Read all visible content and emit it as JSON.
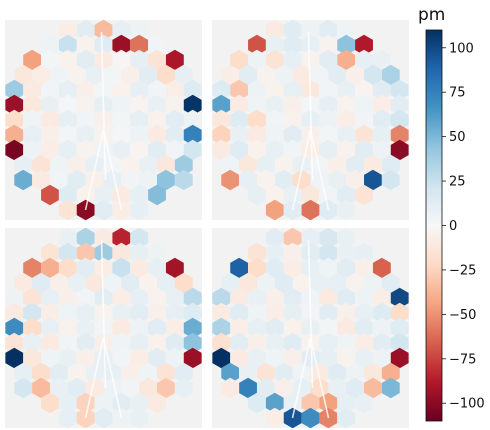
{
  "chart_data": {
    "type": "heatmap",
    "colormap": "RdBu",
    "vmin": -110,
    "vmax": 110,
    "colorbar": {
      "label": "pm",
      "ticks": [
        100,
        75,
        50,
        25,
        0,
        -25,
        -50,
        -75,
        -100
      ],
      "tick_labels": [
        "100",
        "75",
        "50",
        "25",
        "0",
        "−25",
        "−50",
        "−75",
        "−100"
      ]
    },
    "panels": [
      {
        "name": "top-left",
        "rows": [
          [
            -8,
            12,
            -35,
            10,
            6
          ],
          [
            6,
            25,
            -5,
            14,
            -95,
            -60,
            4
          ],
          [
            -45,
            3,
            -5,
            12,
            -10,
            -2,
            10,
            -15,
            -90
          ],
          [
            -12,
            -8,
            5,
            -4,
            8,
            3,
            -6,
            12,
            -20,
            10
          ],
          [
            40,
            -10,
            4,
            10,
            -6,
            3,
            -5,
            10,
            4,
            -8,
            15
          ],
          [
            -95,
            -12,
            8,
            2,
            -4,
            10,
            5,
            -3,
            8,
            -4,
            108
          ],
          [
            -20,
            5,
            -10,
            10,
            4,
            -6,
            3,
            10,
            -5,
            12,
            6
          ],
          [
            -40,
            10,
            -6,
            3,
            8,
            -4,
            2,
            6,
            -10,
            12,
            75
          ],
          [
            -105,
            6,
            -8,
            10,
            -4,
            5,
            8,
            -3,
            12,
            4,
            20
          ],
          [
            10,
            -15,
            5,
            -6,
            10,
            3,
            -5,
            8,
            -12,
            40
          ],
          [
            55,
            -10,
            4,
            12,
            -6,
            10,
            4,
            6,
            45,
            30
          ],
          [
            -70,
            15,
            -5,
            8,
            -10,
            10,
            48
          ],
          [
            -15,
            -100,
            12,
            -8,
            10
          ]
        ]
      },
      {
        "name": "top-right",
        "rows": [
          [
            -10,
            14,
            6,
            12,
            5
          ],
          [
            -70,
            8,
            14,
            10,
            -4,
            45,
            -88
          ],
          [
            -20,
            6,
            -15,
            10,
            -5,
            12,
            -40,
            10,
            8
          ],
          [
            -8,
            12,
            -4,
            6,
            -10,
            4,
            12,
            -6,
            20,
            35
          ],
          [
            15,
            -30,
            6,
            -5,
            10,
            -12,
            4,
            8,
            -3,
            12,
            20
          ],
          [
            60,
            -10,
            5,
            8,
            -6,
            3,
            10,
            -4,
            5,
            -8,
            12
          ],
          [
            -12,
            15,
            -20,
            4,
            -5,
            10,
            6,
            -8,
            4,
            12,
            20
          ],
          [
            -25,
            8,
            -10,
            5,
            12,
            -6,
            3,
            8,
            -15,
            10,
            -55
          ],
          [
            -10,
            14,
            -5,
            8,
            4,
            -8,
            10,
            -4,
            12,
            6,
            -100
          ],
          [
            5,
            -12,
            10,
            -4,
            8,
            3,
            -6,
            12,
            -10,
            14
          ],
          [
            -50,
            10,
            -4,
            12,
            -20,
            5,
            8,
            -6,
            95,
            20
          ],
          [
            10,
            -5,
            8,
            -12,
            4,
            12,
            -15
          ],
          [
            -45,
            12,
            -60,
            14,
            8
          ]
        ]
      },
      {
        "name": "bottom-left",
        "rows": [
          [
            8,
            35,
            -10,
            -85,
            20
          ],
          [
            -15,
            20,
            -30,
            40,
            -12,
            10,
            6
          ],
          [
            -55,
            -40,
            -20,
            12,
            -8,
            25,
            -10,
            10,
            -92
          ],
          [
            -10,
            14,
            -6,
            8,
            -12,
            5,
            12,
            -5,
            10,
            -20
          ],
          [
            6,
            -15,
            10,
            -6,
            4,
            12,
            -8,
            10,
            -4,
            8,
            30
          ],
          [
            -10,
            20,
            -8,
            5,
            10,
            -4,
            8,
            12,
            -6,
            10,
            15
          ],
          [
            70,
            -20,
            10,
            -5,
            8,
            3,
            -10,
            6,
            12,
            -8,
            55
          ],
          [
            -15,
            8,
            -10,
            4,
            12,
            -6,
            5,
            10,
            -5,
            14,
            45
          ],
          [
            110,
            -12,
            5,
            8,
            -6,
            10,
            4,
            -8,
            12,
            6,
            -95
          ],
          [
            10,
            -20,
            12,
            -4,
            8,
            10,
            -6,
            5,
            -15,
            12
          ],
          [
            20,
            -35,
            8,
            12,
            -10,
            6,
            4,
            -12,
            -30,
            10
          ],
          [
            -20,
            10,
            -25,
            6,
            12,
            8,
            -10
          ],
          [
            10,
            -25,
            12,
            6,
            8
          ]
        ]
      },
      {
        "name": "bottom-right",
        "rows": [
          [
            12,
            -30,
            10,
            18,
            8
          ],
          [
            -15,
            10,
            -6,
            12,
            20,
            8,
            10
          ],
          [
            90,
            -20,
            14,
            -8,
            10,
            5,
            12,
            -6,
            -65
          ],
          [
            10,
            -12,
            6,
            14,
            -5,
            8,
            10,
            -4,
            6,
            12
          ],
          [
            30,
            -10,
            8,
            -6,
            12,
            5,
            -10,
            14,
            6,
            -8,
            100
          ],
          [
            -10,
            14,
            5,
            -8,
            10,
            4,
            12,
            -6,
            10,
            15,
            -20
          ],
          [
            35,
            -8,
            10,
            12,
            -5,
            8,
            3,
            -10,
            12,
            6,
            14
          ],
          [
            -18,
            12,
            -6,
            8,
            14,
            -4,
            10,
            5,
            -8,
            12,
            20
          ],
          [
            115,
            -10,
            8,
            5,
            -6,
            12,
            10,
            -4,
            8,
            6,
            -95
          ],
          [
            60,
            8,
            -15,
            12,
            5,
            -10,
            14,
            6,
            -12,
            -40
          ],
          [
            -10,
            75,
            12,
            -6,
            10,
            -20,
            8,
            14,
            -35,
            50
          ],
          [
            15,
            60,
            8,
            -30,
            -45,
            10,
            8
          ],
          [
            -8,
            95,
            70,
            -55,
            12
          ]
        ]
      }
    ]
  }
}
